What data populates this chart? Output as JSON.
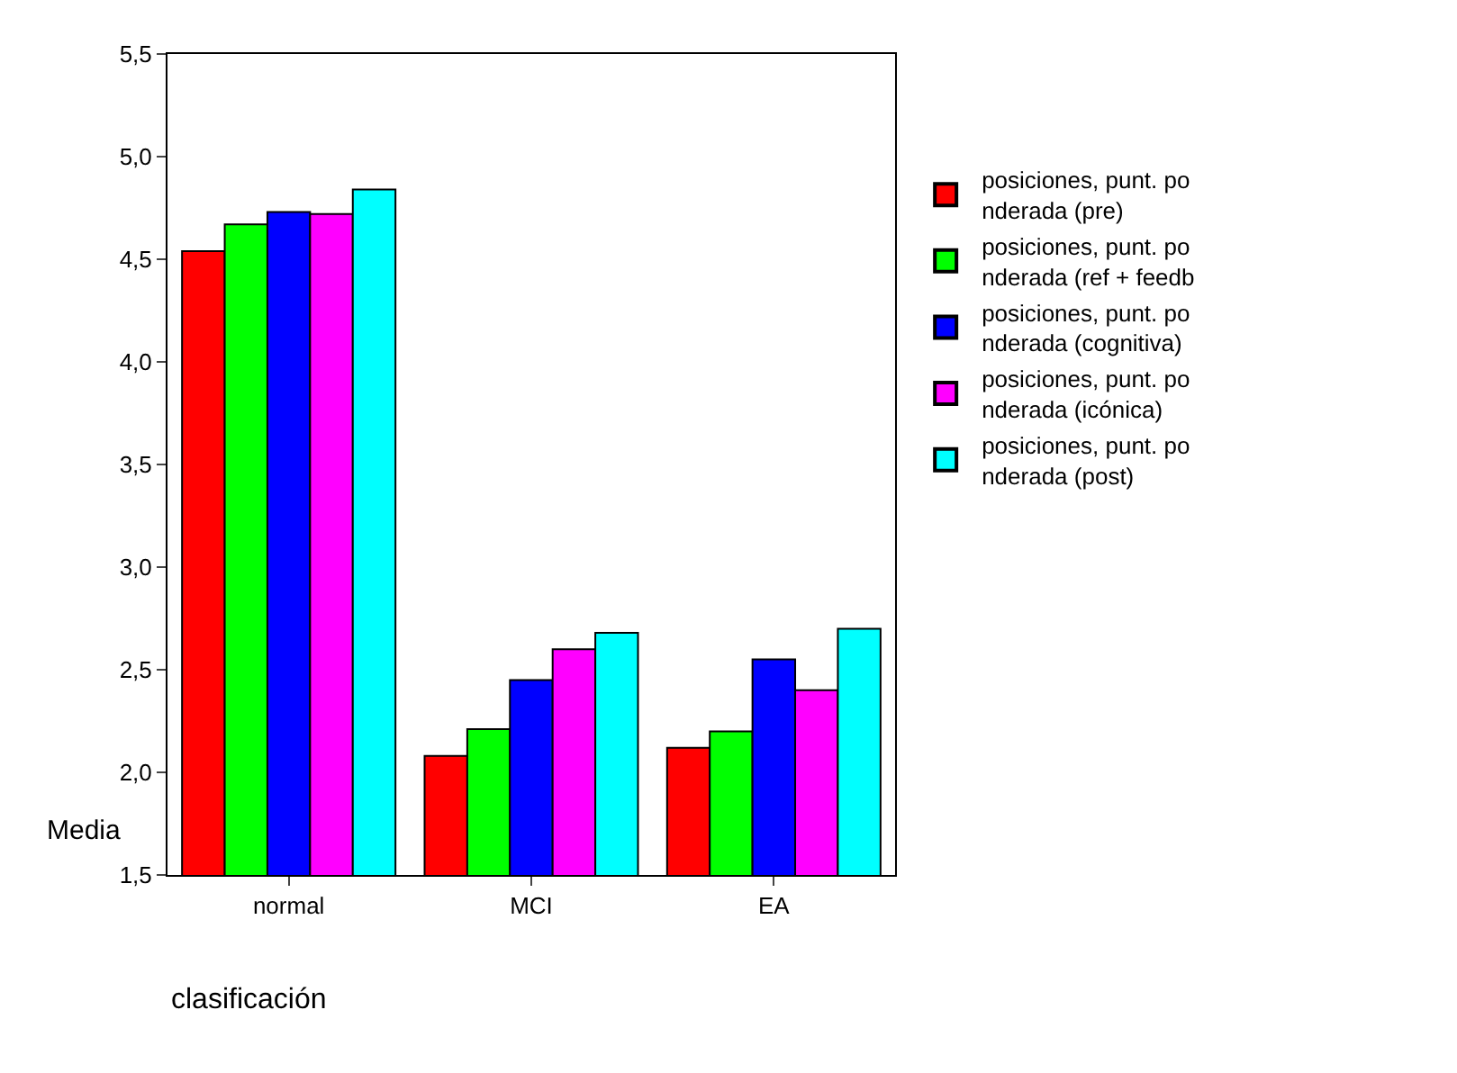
{
  "chart_data": {
    "type": "bar",
    "xlabel": "clasificación",
    "ylabel": "Media",
    "categories": [
      "normal",
      "MCI",
      "EA"
    ],
    "series": [
      {
        "name": "posiciones, punt. po\nnderada (pre)",
        "color": "#ff0000",
        "values": [
          4.54,
          2.08,
          2.12
        ]
      },
      {
        "name": "posiciones, punt. po\nnderada (ref + feedb",
        "color": "#00ff00",
        "values": [
          4.67,
          2.21,
          2.2
        ]
      },
      {
        "name": "posiciones, punt. po\nnderada (cognitiva)",
        "color": "#0000ff",
        "values": [
          4.73,
          2.45,
          2.55
        ]
      },
      {
        "name": "posiciones, punt. po\nnderada (icónica)",
        "color": "#ff00ff",
        "values": [
          4.72,
          2.6,
          2.4
        ]
      },
      {
        "name": "posiciones, punt. po\nnderada (post)",
        "color": "#00ffff",
        "values": [
          4.84,
          2.68,
          2.7
        ]
      }
    ],
    "ylim": [
      1.5,
      5.5
    ],
    "yticks": [
      {
        "value": 1.5,
        "label": "1,5"
      },
      {
        "value": 2.0,
        "label": "2,0"
      },
      {
        "value": 2.5,
        "label": "2,5"
      },
      {
        "value": 3.0,
        "label": "3,0"
      },
      {
        "value": 3.5,
        "label": "3,5"
      },
      {
        "value": 4.0,
        "label": "4,0"
      },
      {
        "value": 4.5,
        "label": "4,5"
      },
      {
        "value": 5.0,
        "label": "5,0"
      },
      {
        "value": 5.5,
        "label": "5,5"
      }
    ],
    "legend": "right"
  }
}
